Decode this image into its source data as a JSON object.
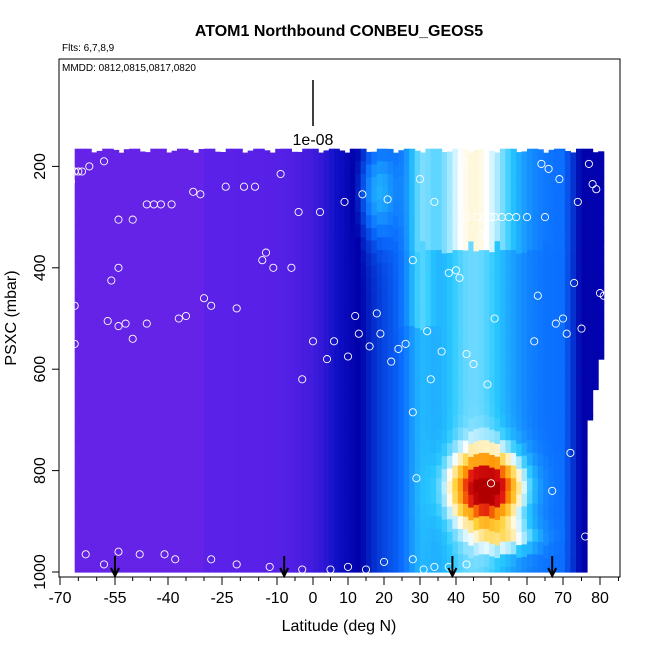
{
  "chart_data": {
    "type": "heatmap",
    "title": "ATOM1 Northbound CONBEU_GEOS5",
    "flights_note": "Flts: 6,7,8,9",
    "dates_note": "MMDD: 0812,0815,0817,0820",
    "xlabel": "Latitude (deg N)",
    "ylabel": "PSXC (mbar)",
    "xlim": [
      -70,
      85
    ],
    "ylim": [
      1000,
      0
    ],
    "x_ticks": [
      -70,
      -55,
      -40,
      -25,
      -10,
      0,
      10,
      20,
      30,
      40,
      50,
      60,
      70,
      80
    ],
    "x_tick_labels": [
      "-70",
      "-55",
      "-40",
      "-25",
      "-10",
      "0",
      "10",
      "20",
      "30",
      "40",
      "50",
      "60",
      "70",
      "80"
    ],
    "y_ticks": [
      200,
      400,
      600,
      800,
      1000
    ],
    "y_tick_labels": [
      "200",
      "400",
      "600",
      "800",
      "1000"
    ],
    "colorbar_label": "1e-08",
    "heatmap": {
      "lat_range": [
        -66,
        80
      ],
      "pressure_range": [
        165,
        1000
      ],
      "colors": [
        "#8a2be2",
        "#5a21e8",
        "#1010c8",
        "#0000a8",
        "#0a6cff",
        "#28c8ff",
        "#ffffff",
        "#ffd23a",
        "#ff8c00",
        "#e01010",
        "#b00000"
      ],
      "hotspot": {
        "lat": 49,
        "pressure": 835,
        "level": 1.0
      }
    },
    "markers_lat": [
      39,
      67,
      -55,
      -8
    ],
    "points": [
      [
        -67,
        230
      ],
      [
        -66,
        210
      ],
      [
        -65,
        210
      ],
      [
        -64,
        210
      ],
      [
        -62,
        200
      ],
      [
        -58,
        190
      ],
      [
        -66,
        475
      ],
      [
        -66,
        550
      ],
      [
        -57,
        505
      ],
      [
        -56,
        425
      ],
      [
        -54,
        515
      ],
      [
        -52,
        510
      ],
      [
        -54,
        305
      ],
      [
        -50,
        305
      ],
      [
        -54,
        400
      ],
      [
        -50,
        540
      ],
      [
        -46,
        510
      ],
      [
        -46,
        275
      ],
      [
        -44,
        275
      ],
      [
        -42,
        275
      ],
      [
        -39,
        275
      ],
      [
        -37,
        500
      ],
      [
        -35,
        495
      ],
      [
        -33,
        250
      ],
      [
        -31,
        255
      ],
      [
        -30,
        460
      ],
      [
        -28,
        475
      ],
      [
        -24,
        240
      ],
      [
        -21,
        480
      ],
      [
        -19,
        240
      ],
      [
        -16,
        240
      ],
      [
        -14,
        385
      ],
      [
        -13,
        370
      ],
      [
        -11,
        400
      ],
      [
        -9,
        215
      ],
      [
        -6,
        400
      ],
      [
        -4,
        290
      ],
      [
        -3,
        620
      ],
      [
        0,
        545
      ],
      [
        2,
        290
      ],
      [
        4,
        580
      ],
      [
        6,
        545
      ],
      [
        9,
        270
      ],
      [
        10,
        575
      ],
      [
        12,
        495
      ],
      [
        13,
        530
      ],
      [
        14,
        255
      ],
      [
        16,
        555
      ],
      [
        18,
        490
      ],
      [
        19,
        530
      ],
      [
        21,
        265
      ],
      [
        22,
        585
      ],
      [
        24,
        560
      ],
      [
        26,
        550
      ],
      [
        28,
        385
      ],
      [
        28,
        685
      ],
      [
        29,
        815
      ],
      [
        30,
        225
      ],
      [
        32,
        525
      ],
      [
        33,
        620
      ],
      [
        34,
        270
      ],
      [
        36,
        565
      ],
      [
        38,
        410
      ],
      [
        40,
        405
      ],
      [
        41,
        420
      ],
      [
        42,
        190
      ],
      [
        43,
        300
      ],
      [
        43,
        570
      ],
      [
        45,
        590
      ],
      [
        46,
        300
      ],
      [
        47,
        335
      ],
      [
        48,
        300
      ],
      [
        49,
        630
      ],
      [
        50,
        300
      ],
      [
        50,
        825
      ],
      [
        51,
        500
      ],
      [
        51,
        300
      ],
      [
        53,
        300
      ],
      [
        55,
        300
      ],
      [
        57,
        300
      ],
      [
        60,
        300
      ],
      [
        62,
        545
      ],
      [
        63,
        455
      ],
      [
        64,
        195
      ],
      [
        65,
        300
      ],
      [
        66,
        205
      ],
      [
        67,
        840
      ],
      [
        68,
        510
      ],
      [
        69,
        225
      ],
      [
        70,
        500
      ],
      [
        71,
        530
      ],
      [
        72,
        765
      ],
      [
        73,
        430
      ],
      [
        74,
        270
      ],
      [
        75,
        520
      ],
      [
        76,
        930
      ],
      [
        77,
        195
      ],
      [
        78,
        235
      ],
      [
        79,
        245
      ],
      [
        80,
        450
      ],
      [
        81,
        455
      ],
      [
        82,
        860
      ],
      [
        -63,
        965
      ],
      [
        -58,
        985
      ],
      [
        -54,
        960
      ],
      [
        -48,
        965
      ],
      [
        -41,
        965
      ],
      [
        -38,
        975
      ],
      [
        -28,
        975
      ],
      [
        -21,
        985
      ],
      [
        -12,
        990
      ],
      [
        -3,
        995
      ],
      [
        5,
        995
      ],
      [
        10,
        990
      ],
      [
        15,
        995
      ],
      [
        20,
        980
      ],
      [
        28,
        975
      ],
      [
        31,
        995
      ],
      [
        34,
        990
      ],
      [
        38,
        990
      ],
      [
        43,
        985
      ]
    ]
  }
}
